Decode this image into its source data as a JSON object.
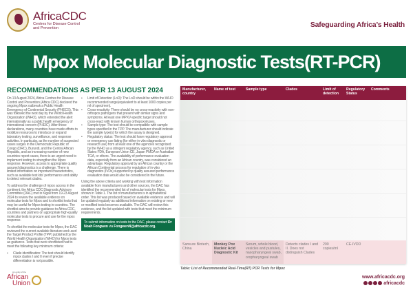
{
  "header": {
    "brand": "AfricaCDC",
    "brand_sub1": "Centres for Disease Control",
    "brand_sub2": "and Prevention",
    "tagline": "Safeguarding Africa’s Health"
  },
  "banner": {
    "title": "Mpox Molecular Diagnostic Tests(RT-PCR)"
  },
  "section_heading": "RECOMMENDATIONS AS PER 13 AUGUST 2024",
  "col1": {
    "p1": "On 13 August 2024, Africa Centres for Disease Control and Prevention (Africa CDC) declared the ongoing Mpox outbreak a Public Health Emergency of Continental Security (PHECS). This was followed the next day by the World Health Organization (WHO), which extended the alert internationally as a public health emergency of international concern (PHEIC). After these declarations, many countries have made efforts to mobilize resources to introduce or expand laboratory testing, surveillance, and response activities. In particular, as the number of suspected cases surges in the Democratic Republic of Congo (DRC), Burundi, and the Central African Republic, and an increasing number of new countries report cases, there is an urgent need to implement testing to strengthen the Mpox response. However, access to appropriate quality assured diagnostics is a challenge. There is limited information on important characteristics, such as available test kits' performance and ability to detect relevant clades.",
    "p2": "To address the challenge of mpox access in the continent, the Africa CDC Diagnostic Advisory Committee (DAC) met in Kigali from 19-23 August 2024 to review the available evidence on molecular tests for Mpox and to shortlist tests that may be useful for Mpox testing in countries. The shortlist aims to provide guidance to Africa CDC, countries and partners on appropriate high-quality molecular tests to procure and use for the mpox response.",
    "p3": "To shortlist the molecular tests for Mpox, the DAC reviewed the current available literature and used the Target Product Profile (TPP) published by the World Health Organization (WHO) for Mpox tests as guidance. Tests that were shortlisted had to meet the following key minimum criteria:",
    "bullet1": "Clade identification: The test should identify mpox clades I and II even if precise differentiation is not possible."
  },
  "col2": {
    "bullets": [
      "Limit of Detection (LoD): The LoD should be within the WHO recommended range(equivalent to at least 1000 copies per ml of specimen).",
      "Cross-reactivity: There should be no cross-reactivity with non-orthopox pathogens that present with similar signs and symptoms. At least one MPXV-specific target should not cross-react with known human orthopoxviruses.",
      "Sample type: The test should be compatible with sample types specified in the TPP. The manufacturer should indicate the sample type(s) for which the assay is designed.",
      "Regulatory status: The test should have regulatory approval or emergency use listing (for either in vitro diagnostic or research use) from at least one of the agencies recognized by the WHO as a stringent regulatory agency, such as United States FDA, European Union CE, Japan PMDA or Australian TGA, or others. The availability of performance evaluation data, especially from an African country, was considered an advantage. Regulatory approval by an African country or the African Continental process for regulation of in-vitro diagnostics (IVDs) supported by quality assured performance evaluation data would also be considered in the future."
    ],
    "p1": "Using the above criteria and working with test information available from manufacturers and other sources, the DAC has identified the recommended list of molecular tests for Mpox, shown in Table 1. The list of manufacturers is in alphabetical order. This list was produced based on available evidence and will be updated regularly as additional information on existing or new or modified tests becomes available. The DAC will review this evidence, and the list updated with tests that meet the minimum requirements.",
    "submit_text": "To submit information on tests to the DAC, please contact ",
    "submit_name": "Dr Noah Fongwen",
    "submit_via": " via ",
    "submit_email": "FongwenN@africacdc.org."
  },
  "table": {
    "headers": [
      "Manufacturer, country",
      "Name of test",
      "Sample type",
      "Clades",
      "Limit of detection",
      "Regulatory Status",
      "Comments"
    ],
    "last_row": [
      "Sansure Biotech, China",
      "Monkey Pox Nucleic Acid Diagnostic Kit",
      "Serum, whole blood, vesicles and pustules, nasopharyngeal swab, oropharyngeal swab",
      "Detects clades I and II. Does not distinguish Clades",
      "200 copies/ml",
      "CE-IVDD",
      ""
    ],
    "caption": "Table: List of Recommended Real-Time(RT) PCR Tests for Mpox"
  },
  "footer": {
    "au_entity": "An entity of the",
    "au_name1": "African",
    "au_name2": "Union",
    "website": "www.africacdc.org",
    "social_handle": "africacdc",
    "social_icons": [
      "x-icon",
      "facebook-icon",
      "youtube-icon",
      "instagram-icon"
    ]
  },
  "colors": {
    "green": "#0d6e45",
    "maroon": "#8c1c3e"
  }
}
